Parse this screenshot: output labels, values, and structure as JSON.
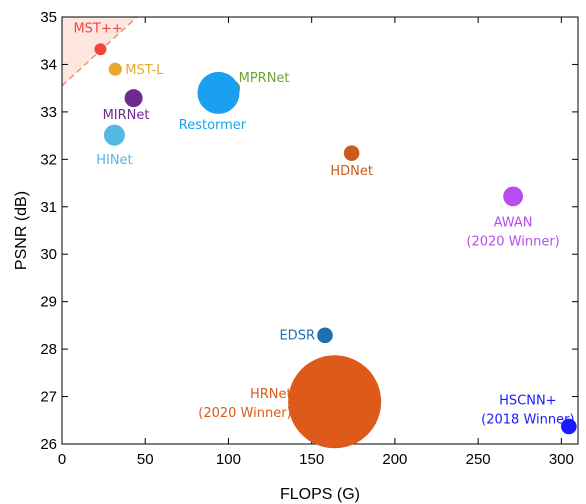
{
  "chart_data": {
    "type": "scatter",
    "xlabel": "FLOPS (G)",
    "ylabel": "PSNR (dB)",
    "xlim": [
      0,
      310
    ],
    "ylim": [
      26,
      35
    ],
    "xticks": [
      0,
      50,
      100,
      150,
      200,
      250,
      300
    ],
    "yticks": [
      26,
      27,
      28,
      29,
      30,
      31,
      32,
      33,
      34,
      35
    ],
    "grid": false,
    "points": [
      {
        "label": "MST++",
        "x": 23.1,
        "y": 34.32,
        "size": 2.0,
        "color": "#f2463d"
      },
      {
        "label": "MST-L",
        "x": 32.0,
        "y": 33.9,
        "size": 2.2,
        "color": "#e8a92b"
      },
      {
        "label": "MIRNet",
        "x": 43.0,
        "y": 33.29,
        "size": 3.0,
        "color": "#6f2a8f"
      },
      {
        "label": "HINet",
        "x": 31.5,
        "y": 32.51,
        "size": 3.5,
        "color": "#54b8e4"
      },
      {
        "label": "MPRNet",
        "x": 102.5,
        "y": 33.5,
        "size": 2.5,
        "color": "#6aa535"
      },
      {
        "label": "Restormer",
        "x": 94.0,
        "y": 33.4,
        "size": 7.0,
        "color": "#1aa0f0"
      },
      {
        "label": "HDNet",
        "x": 174.0,
        "y": 32.13,
        "size": 2.6,
        "color": "#cc5a1e"
      },
      {
        "label": "AWAN\n(2020 Winner)",
        "x": 271.0,
        "y": 31.22,
        "size": 3.3,
        "color": "#b84cf0"
      },
      {
        "label": "EDSR",
        "x": 158.0,
        "y": 28.29,
        "size": 2.6,
        "color": "#1f6fb5"
      },
      {
        "label": "HRNet\n(2020 Winner)",
        "x": 163.8,
        "y": 26.89,
        "size": 15.5,
        "color": "#dd5a1a"
      },
      {
        "label": "HSCNN+\n(2018 Winner)",
        "x": 304.5,
        "y": 26.37,
        "size": 2.6,
        "color": "#1a1aff"
      }
    ],
    "annotation_region": {
      "color": "#f9d2c3",
      "line_color": "#f08d7e"
    }
  }
}
